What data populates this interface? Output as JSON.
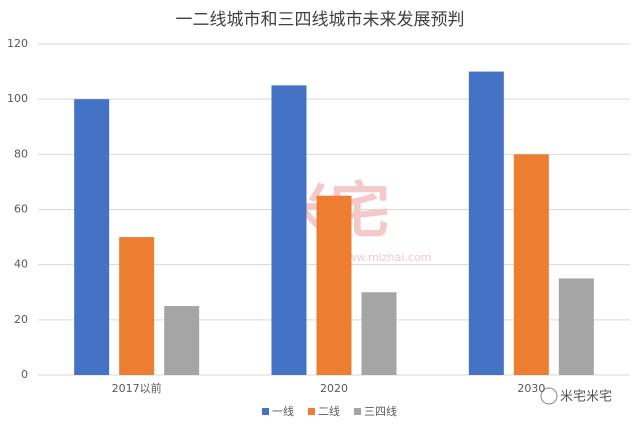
{
  "chart_data": {
    "type": "bar",
    "title": "一二线城市和三四线城市未来发展预判",
    "categories": [
      "2017以前",
      "2020",
      "2030"
    ],
    "series": [
      {
        "name": "一线",
        "color": "#4472c4",
        "values": [
          100,
          105,
          110
        ]
      },
      {
        "name": "二线",
        "color": "#ed7d31",
        "values": [
          50,
          65,
          80
        ]
      },
      {
        "name": "三四线",
        "color": "#a5a5a5",
        "values": [
          25,
          30,
          35
        ]
      }
    ],
    "ylim": [
      0,
      120
    ],
    "yticks": [
      0,
      20,
      40,
      60,
      80,
      100,
      120
    ],
    "grid": true,
    "legend": "bottom",
    "annotations": [
      "米宅",
      "www.mizhai.com",
      "米宅米宅"
    ]
  }
}
